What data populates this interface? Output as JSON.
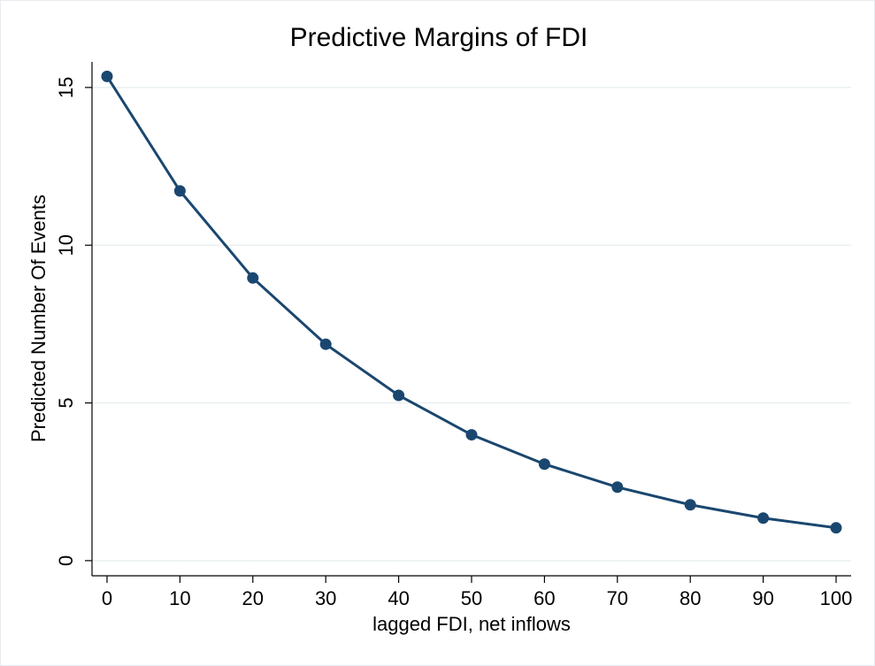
{
  "chart_data": {
    "type": "line",
    "title": "Predictive Margins of FDI",
    "x_label": "lagged FDI, net inflows",
    "y_label": "Predicted Number Of Events",
    "x": [
      0,
      10,
      20,
      30,
      40,
      50,
      60,
      70,
      80,
      90,
      100
    ],
    "series": [
      {
        "color": "#1a476f",
        "values": [
          15.35,
          11.72,
          8.96,
          6.86,
          5.24,
          3.99,
          3.06,
          2.33,
          1.77,
          1.35,
          1.04
        ]
      }
    ],
    "xlim": [
      -2.06,
      102.06
    ],
    "ylim": [
      -0.48,
      15.81
    ],
    "xticks": [
      0,
      10,
      20,
      30,
      40,
      50,
      60,
      70,
      80,
      90,
      100
    ],
    "yticks": [
      0,
      5,
      10,
      15
    ],
    "grid": true
  }
}
